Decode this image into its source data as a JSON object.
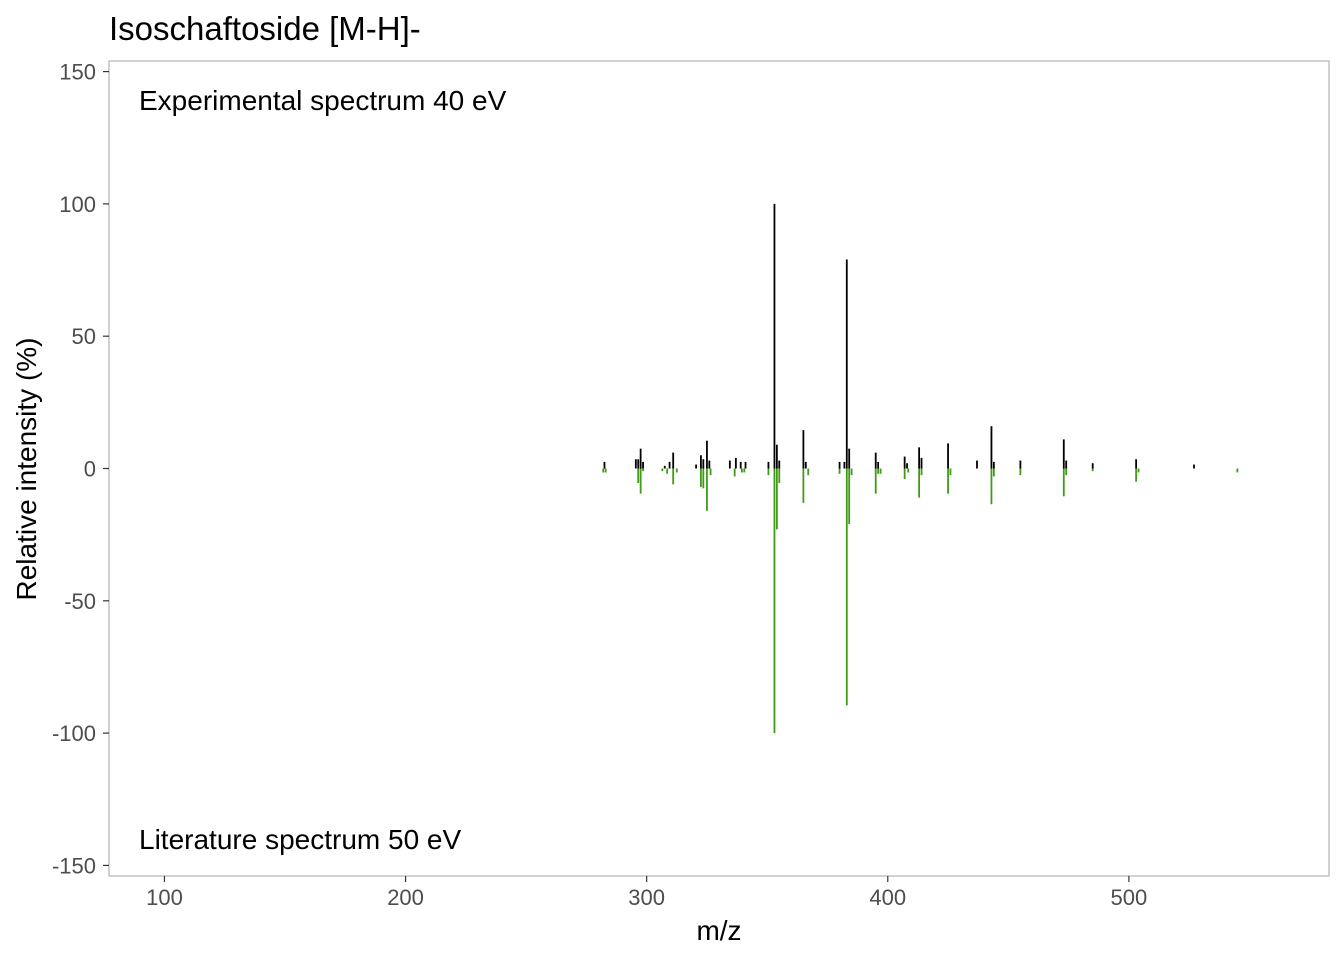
{
  "chart_data": {
    "type": "bar",
    "title": "Isoschaftoside [M-H]-",
    "xlabel": "m/z",
    "ylabel": "Relative intensity (%)",
    "xlim": [
      77,
      583
    ],
    "ylim": [
      -154,
      154
    ],
    "x_ticks": [
      100,
      200,
      300,
      400,
      500
    ],
    "y_ticks": [
      150,
      100,
      50,
      0,
      -50,
      -100,
      -150
    ],
    "y_tick_labels": [
      "150",
      "100",
      "50",
      "0",
      "-50",
      "-100",
      "-150"
    ],
    "grid": false,
    "annotations": {
      "top": "Experimental spectrum 40 eV",
      "bottom": "Literature spectrum 50 eV"
    },
    "series": [
      {
        "color": "#000000",
        "points": [
          {
            "x": 282.5,
            "y": 2.5
          },
          {
            "x": 295.5,
            "y": 3.5
          },
          {
            "x": 296.5,
            "y": 3.5
          },
          {
            "x": 297.5,
            "y": 7.5
          },
          {
            "x": 298.5,
            "y": 2.5
          },
          {
            "x": 307.5,
            "y": 1
          },
          {
            "x": 309.5,
            "y": 2.5
          },
          {
            "x": 311.0,
            "y": 6
          },
          {
            "x": 320.5,
            "y": 1.5
          },
          {
            "x": 322.5,
            "y": 5
          },
          {
            "x": 323.5,
            "y": 3.5
          },
          {
            "x": 325.0,
            "y": 10.5
          },
          {
            "x": 326.0,
            "y": 3
          },
          {
            "x": 334.5,
            "y": 3
          },
          {
            "x": 337.0,
            "y": 4
          },
          {
            "x": 339.0,
            "y": 2.5
          },
          {
            "x": 341.0,
            "y": 2.5
          },
          {
            "x": 350.5,
            "y": 2.5
          },
          {
            "x": 353.0,
            "y": 100
          },
          {
            "x": 354.0,
            "y": 9
          },
          {
            "x": 355.0,
            "y": 3
          },
          {
            "x": 365.0,
            "y": 14.5
          },
          {
            "x": 366.0,
            "y": 2.5
          },
          {
            "x": 380.0,
            "y": 2.5
          },
          {
            "x": 382.0,
            "y": 2.5
          },
          {
            "x": 383.0,
            "y": 79
          },
          {
            "x": 384.0,
            "y": 7.5
          },
          {
            "x": 395.0,
            "y": 6
          },
          {
            "x": 396.0,
            "y": 2.5
          },
          {
            "x": 407.0,
            "y": 4.5
          },
          {
            "x": 408.0,
            "y": 2
          },
          {
            "x": 413.0,
            "y": 8
          },
          {
            "x": 414.0,
            "y": 4
          },
          {
            "x": 425.0,
            "y": 9.5
          },
          {
            "x": 437.0,
            "y": 3
          },
          {
            "x": 443.0,
            "y": 16
          },
          {
            "x": 444.0,
            "y": 2.5
          },
          {
            "x": 455.0,
            "y": 3
          },
          {
            "x": 473.0,
            "y": 11
          },
          {
            "x": 474.0,
            "y": 3
          },
          {
            "x": 485.0,
            "y": 2
          },
          {
            "x": 503.0,
            "y": 3.5
          },
          {
            "x": 527.0,
            "y": 1.5
          }
        ]
      },
      {
        "color": "#3f9a15",
        "points": [
          {
            "x": 282.0,
            "y": -1.5
          },
          {
            "x": 283.0,
            "y": -1.5
          },
          {
            "x": 296.5,
            "y": -5.5
          },
          {
            "x": 297.5,
            "y": -9.5
          },
          {
            "x": 298.5,
            "y": -1
          },
          {
            "x": 306.5,
            "y": -1
          },
          {
            "x": 308.5,
            "y": -2
          },
          {
            "x": 311.0,
            "y": -6
          },
          {
            "x": 312.5,
            "y": -1.5
          },
          {
            "x": 322.5,
            "y": -7
          },
          {
            "x": 323.5,
            "y": -7.5
          },
          {
            "x": 325.0,
            "y": -16
          },
          {
            "x": 326.5,
            "y": -2.5
          },
          {
            "x": 336.5,
            "y": -3
          },
          {
            "x": 339.5,
            "y": -1.5
          },
          {
            "x": 340.5,
            "y": -1.5
          },
          {
            "x": 350.5,
            "y": -2.5
          },
          {
            "x": 353.0,
            "y": -100
          },
          {
            "x": 354.0,
            "y": -23
          },
          {
            "x": 355.0,
            "y": -5.5
          },
          {
            "x": 365.0,
            "y": -13
          },
          {
            "x": 367.0,
            "y": -2.5
          },
          {
            "x": 380.0,
            "y": -2
          },
          {
            "x": 383.0,
            "y": -89.5
          },
          {
            "x": 384.0,
            "y": -21
          },
          {
            "x": 385.0,
            "y": -2.5
          },
          {
            "x": 395.0,
            "y": -9.5
          },
          {
            "x": 396.0,
            "y": -2
          },
          {
            "x": 397.0,
            "y": -2
          },
          {
            "x": 407.0,
            "y": -4
          },
          {
            "x": 408.5,
            "y": -1.5
          },
          {
            "x": 413.0,
            "y": -11
          },
          {
            "x": 414.0,
            "y": -2.5
          },
          {
            "x": 425.0,
            "y": -9.5
          },
          {
            "x": 426.0,
            "y": -2.5
          },
          {
            "x": 443.0,
            "y": -13.5
          },
          {
            "x": 444.0,
            "y": -3
          },
          {
            "x": 455.0,
            "y": -2.5
          },
          {
            "x": 473.0,
            "y": -10.5
          },
          {
            "x": 474.0,
            "y": -2.5
          },
          {
            "x": 485.0,
            "y": -1
          },
          {
            "x": 503.0,
            "y": -5
          },
          {
            "x": 504.0,
            "y": -1.5
          },
          {
            "x": 545.0,
            "y": -1.5
          }
        ]
      }
    ]
  }
}
